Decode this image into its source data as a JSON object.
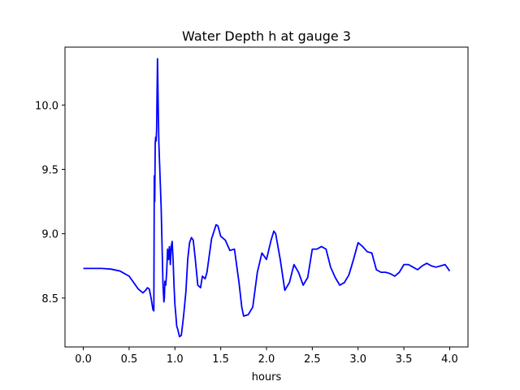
{
  "chart_data": {
    "type": "line",
    "title": "Water Depth h at gauge 3",
    "xlabel": "hours",
    "ylabel": "",
    "xlim": [
      -0.2,
      4.2
    ],
    "ylim": [
      8.12,
      10.45
    ],
    "x_ticks": [
      0.0,
      0.5,
      1.0,
      1.5,
      2.0,
      2.5,
      3.0,
      3.5,
      4.0
    ],
    "x_tick_labels": [
      "0.0",
      "0.5",
      "1.0",
      "1.5",
      "2.0",
      "2.5",
      "3.0",
      "3.5",
      "4.0"
    ],
    "y_ticks": [
      8.5,
      9.0,
      9.5,
      10.0
    ],
    "y_tick_labels": [
      "8.5",
      "9.0",
      "9.5",
      "10.0"
    ],
    "grid": false,
    "series": [
      {
        "color": "#0000ff",
        "x": [
          0.0,
          0.2,
          0.3,
          0.4,
          0.5,
          0.55,
          0.6,
          0.65,
          0.68,
          0.7,
          0.72,
          0.74,
          0.76,
          0.77,
          0.775,
          0.78,
          0.785,
          0.79,
          0.795,
          0.8,
          0.81,
          0.82,
          0.825,
          0.83,
          0.84,
          0.85,
          0.86,
          0.87,
          0.88,
          0.885,
          0.89,
          0.9,
          0.91,
          0.92,
          0.93,
          0.94,
          0.95,
          0.96,
          0.97,
          0.98,
          0.99,
          1.0,
          1.01,
          1.02,
          1.03,
          1.05,
          1.07,
          1.09,
          1.1,
          1.12,
          1.14,
          1.16,
          1.18,
          1.2,
          1.22,
          1.25,
          1.28,
          1.3,
          1.33,
          1.35,
          1.4,
          1.45,
          1.47,
          1.5,
          1.55,
          1.6,
          1.65,
          1.7,
          1.73,
          1.75,
          1.8,
          1.85,
          1.9,
          1.95,
          2.0,
          2.05,
          2.08,
          2.1,
          2.15,
          2.2,
          2.25,
          2.3,
          2.35,
          2.4,
          2.45,
          2.5,
          2.55,
          2.6,
          2.65,
          2.7,
          2.75,
          2.8,
          2.85,
          2.9,
          2.95,
          3.0,
          3.05,
          3.1,
          3.15,
          3.2,
          3.25,
          3.3,
          3.35,
          3.4,
          3.45,
          3.5,
          3.55,
          3.6,
          3.65,
          3.7,
          3.75,
          3.8,
          3.85,
          3.9,
          3.95,
          4.0
        ],
        "y": [
          8.73,
          8.73,
          8.725,
          8.71,
          8.67,
          8.62,
          8.57,
          8.54,
          8.56,
          8.58,
          8.57,
          8.5,
          8.41,
          8.4,
          9.45,
          9.25,
          9.7,
          9.75,
          9.72,
          9.8,
          10.36,
          9.9,
          9.7,
          9.6,
          9.4,
          9.2,
          8.9,
          8.6,
          8.47,
          8.5,
          8.63,
          8.6,
          8.7,
          8.88,
          8.8,
          8.9,
          8.76,
          8.9,
          8.94,
          8.8,
          8.6,
          8.45,
          8.37,
          8.28,
          8.26,
          8.2,
          8.21,
          8.33,
          8.4,
          8.55,
          8.8,
          8.93,
          8.97,
          8.95,
          8.82,
          8.6,
          8.58,
          8.67,
          8.65,
          8.7,
          8.96,
          9.07,
          9.06,
          8.98,
          8.95,
          8.87,
          8.88,
          8.62,
          8.43,
          8.36,
          8.37,
          8.43,
          8.7,
          8.85,
          8.8,
          8.95,
          9.02,
          9.0,
          8.8,
          8.56,
          8.62,
          8.76,
          8.7,
          8.6,
          8.66,
          8.88,
          8.88,
          8.9,
          8.88,
          8.74,
          8.66,
          8.6,
          8.62,
          8.68,
          8.8,
          8.93,
          8.9,
          8.86,
          8.85,
          8.72,
          8.7,
          8.7,
          8.69,
          8.67,
          8.7,
          8.76,
          8.76,
          8.74,
          8.72,
          8.75,
          8.77,
          8.75,
          8.74,
          8.75,
          8.76,
          8.71
        ]
      }
    ]
  }
}
